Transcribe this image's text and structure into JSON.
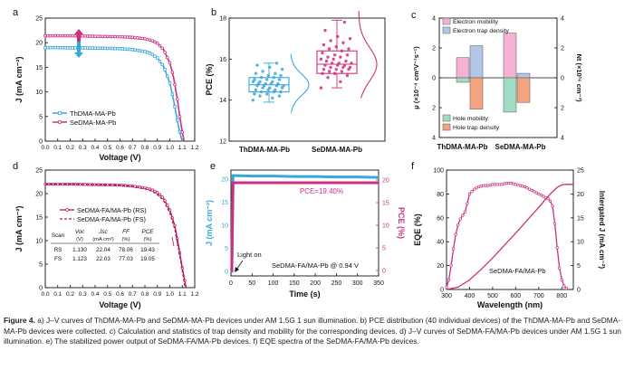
{
  "panels": {
    "a": {
      "letter": "a",
      "xlabel": "Voltage (V)",
      "ylabel": "J (mA cm⁻²)",
      "xlim": [
        0,
        1.2
      ],
      "ylim": [
        0,
        25
      ],
      "xticks": [
        "0.0",
        "0.1",
        "0.2",
        "0.3",
        "0.4",
        "0.5",
        "0.6",
        "0.7",
        "0.8",
        "0.9",
        "1.0",
        "1.1",
        "1.2"
      ],
      "yticks": [
        "0",
        "5",
        "10",
        "15",
        "20",
        "25"
      ],
      "legend": [
        "ThDMA-MA-Pb",
        "SeDMA-MA-Pb"
      ]
    },
    "b": {
      "letter": "b",
      "ylabel": "PCE (%)",
      "ylim": [
        12,
        18
      ],
      "yticks": [
        "12",
        "14",
        "16",
        "18"
      ],
      "categories": [
        "ThDMA-MA-Pb",
        "SeDMA-MA-Pb"
      ]
    },
    "c": {
      "letter": "c",
      "ylabel_left": "μ (×10⁻⁴ cm²V⁻¹s⁻¹)",
      "ylabel_right": "Nt (×10¹⁶ cm⁻³)",
      "yticks": [
        "4",
        "2",
        "0",
        "2",
        "4"
      ],
      "categories": [
        "ThDMA-MA-Pb",
        "SeDMA-MA-Pb"
      ],
      "legend_top": [
        "Electron mobility",
        "Electron trap density"
      ],
      "legend_bottom": [
        "Hole mobility",
        "Hole trap density"
      ]
    },
    "d": {
      "letter": "d",
      "xlabel": "Voltage (V)",
      "ylabel": "J (mA cm⁻²)",
      "xlim": [
        0,
        1.2
      ],
      "ylim": [
        0,
        25
      ],
      "xticks": [
        "0.0",
        "0.1",
        "0.2",
        "0.3",
        "0.4",
        "0.5",
        "0.6",
        "0.7",
        "0.8",
        "0.9",
        "1.0",
        "1.1",
        "1.2"
      ],
      "yticks": [
        "0",
        "5",
        "10",
        "15",
        "20",
        "25"
      ],
      "legend": [
        "SeDMA-FA/MA-Pb (RS)",
        "SeDMA-FA/MA-Pb (FS)"
      ],
      "table": {
        "header": [
          "Scan",
          "Voc",
          "Jsc",
          "FF",
          "PCE"
        ],
        "units": [
          "",
          "(V)",
          "(mA cm²)",
          "(%)",
          "(%)"
        ],
        "rows": [
          [
            "RS",
            "1.130",
            "22.04",
            "78.06",
            "19.43"
          ],
          [
            "FS",
            "1.123",
            "22.03",
            "77.03",
            "19.05"
          ]
        ]
      }
    },
    "e": {
      "letter": "e",
      "xlabel": "Time (s)",
      "ylabel_left": "J (mA cm⁻²)",
      "ylabel_right": "PCE (%)",
      "xticks": [
        "0",
        "50",
        "100",
        "150",
        "200",
        "250",
        "300",
        "350"
      ],
      "yticks_left": [
        "0",
        "5",
        "10",
        "15",
        "20"
      ],
      "yticks_right": [
        "0",
        "5",
        "10",
        "15",
        "20"
      ],
      "pce_label": "PCE=19.40%",
      "light_label": "Light on",
      "device_label": "SeDMA-FA/MA-Pb  @ 0.94 V"
    },
    "f": {
      "letter": "f",
      "xlabel": "Wavelength (nm)",
      "ylabel_left": "EQE (%)",
      "ylabel_right": "Intergated J (mA cm⁻²)",
      "xticks": [
        "300",
        "400",
        "500",
        "600",
        "700",
        "800"
      ],
      "yticks_left": [
        "0",
        "20",
        "40",
        "60",
        "80",
        "100"
      ],
      "yticks_right": [
        "0",
        "5",
        "10",
        "15",
        "20",
        "25"
      ],
      "device_label": "SeDMA-FA/MA-Pb"
    }
  },
  "colors": {
    "th": "#3aa7dc",
    "se": "#cc2f7d",
    "se_dark": "#b2195f",
    "electron_mobility": "#f3b2d4",
    "electron_trap": "#b3c6ea",
    "hole_mobility": "#a3dcc4",
    "hole_trap": "#f3a37f"
  },
  "chart_data": [
    {
      "type": "line",
      "title": "a",
      "xlabel": "Voltage (V)",
      "ylabel": "J (mA cm-2)",
      "xlim": [
        0,
        1.2
      ],
      "ylim": [
        0,
        25
      ],
      "series": [
        {
          "name": "ThDMA-MA-Pb",
          "x": [
            0,
            0.1,
            0.2,
            0.3,
            0.4,
            0.5,
            0.6,
            0.7,
            0.8,
            0.85,
            0.9,
            0.95,
            1.0,
            1.03,
            1.05,
            1.07,
            1.09,
            1.1
          ],
          "y": [
            19.0,
            19.0,
            18.95,
            18.95,
            18.9,
            18.85,
            18.8,
            18.6,
            18.2,
            17.8,
            16.9,
            15.2,
            11.8,
            8.4,
            5.6,
            3.0,
            0.8,
            0
          ]
        },
        {
          "name": "SeDMA-MA-Pb",
          "x": [
            0,
            0.1,
            0.2,
            0.3,
            0.4,
            0.5,
            0.6,
            0.7,
            0.8,
            0.85,
            0.9,
            0.95,
            1.0,
            1.03,
            1.06,
            1.08,
            1.1,
            1.115
          ],
          "y": [
            21.4,
            21.4,
            21.4,
            21.35,
            21.3,
            21.25,
            21.2,
            21.1,
            20.8,
            20.5,
            19.9,
            18.6,
            15.9,
            13.0,
            8.5,
            5.0,
            1.8,
            0
          ]
        }
      ]
    },
    {
      "type": "scatter",
      "title": "b",
      "ylabel": "PCE (%)",
      "categories": [
        "ThDMA-MA-Pb",
        "SeDMA-MA-Pb"
      ],
      "ylim": [
        12,
        18
      ],
      "box": [
        {
          "name": "ThDMA-MA-Pb",
          "q1": 14.4,
          "median": 14.75,
          "q3": 15.1,
          "min": 13.9,
          "max": 15.8
        },
        {
          "name": "SeDMA-MA-Pb",
          "q1": 15.3,
          "median": 15.75,
          "q3": 16.4,
          "min": 14.6,
          "max": 17.9
        }
      ],
      "points": [
        {
          "name": "ThDMA-MA-Pb",
          "values": [
            14.0,
            14.1,
            14.2,
            14.2,
            14.3,
            14.3,
            14.4,
            14.4,
            14.4,
            14.5,
            14.5,
            14.5,
            14.6,
            14.6,
            14.6,
            14.7,
            14.7,
            14.7,
            14.7,
            14.8,
            14.8,
            14.8,
            14.8,
            14.9,
            14.9,
            14.9,
            15.0,
            15.0,
            15.0,
            15.1,
            15.1,
            15.2,
            15.2,
            15.3,
            15.3,
            15.4,
            15.5,
            15.6,
            15.7,
            15.8
          ]
        },
        {
          "name": "SeDMA-MA-Pb",
          "values": [
            14.6,
            14.9,
            15.1,
            15.2,
            15.3,
            15.3,
            15.4,
            15.4,
            15.5,
            15.5,
            15.5,
            15.6,
            15.6,
            15.6,
            15.7,
            15.7,
            15.7,
            15.8,
            15.8,
            15.8,
            15.9,
            15.9,
            16.0,
            16.0,
            16.1,
            16.1,
            16.2,
            16.2,
            16.3,
            16.4,
            16.5,
            16.5,
            16.6,
            16.7,
            16.8,
            16.9,
            17.0,
            17.1,
            17.4,
            17.8
          ]
        }
      ]
    },
    {
      "type": "bar",
      "title": "c",
      "categories": [
        "ThDMA-MA-Pb",
        "SeDMA-MA-Pb"
      ],
      "ylim": [
        -4,
        4
      ],
      "series": [
        {
          "name": "Electron mobility",
          "values": [
            1.35,
            3.0
          ]
        },
        {
          "name": "Electron trap density",
          "values": [
            2.15,
            0.3
          ]
        },
        {
          "name": "Hole mobility",
          "values": [
            -0.3,
            -2.3
          ]
        },
        {
          "name": "Hole trap density",
          "values": [
            -2.1,
            -1.65
          ]
        }
      ]
    },
    {
      "type": "line",
      "title": "d",
      "xlabel": "Voltage (V)",
      "ylabel": "J (mA cm-2)",
      "xlim": [
        0,
        1.2
      ],
      "ylim": [
        0,
        25
      ],
      "series": [
        {
          "name": "SeDMA-FA/MA-Pb (RS)",
          "x": [
            0,
            0.1,
            0.2,
            0.3,
            0.4,
            0.5,
            0.6,
            0.7,
            0.8,
            0.85,
            0.9,
            0.95,
            1.0,
            1.04,
            1.07,
            1.1,
            1.12,
            1.13
          ],
          "y": [
            22.0,
            22.0,
            22.0,
            21.95,
            21.9,
            21.85,
            21.8,
            21.6,
            21.2,
            20.9,
            20.2,
            19.0,
            16.5,
            13.2,
            9.0,
            4.2,
            1.5,
            0
          ]
        },
        {
          "name": "SeDMA-FA/MA-Pb (FS)",
          "x": [
            0,
            0.1,
            0.2,
            0.3,
            0.4,
            0.5,
            0.6,
            0.7,
            0.8,
            0.85,
            0.9,
            0.95,
            1.0,
            1.04,
            1.07,
            1.1,
            1.115,
            1.123
          ],
          "y": [
            22.0,
            22.0,
            22.0,
            21.95,
            21.9,
            21.85,
            21.75,
            21.5,
            21.0,
            20.6,
            19.8,
            18.5,
            15.9,
            12.5,
            8.4,
            3.6,
            1.3,
            0
          ]
        }
      ]
    },
    {
      "type": "line",
      "title": "e",
      "xlabel": "Time (s)",
      "xlim": [
        0,
        350
      ],
      "series": [
        {
          "name": "J (mA cm-2)",
          "x": [
            0,
            2,
            5,
            10,
            50,
            100,
            150,
            200,
            250,
            300,
            350
          ],
          "y": [
            0,
            0,
            20.8,
            20.8,
            20.7,
            20.7,
            20.6,
            20.6,
            20.5,
            20.5,
            20.4
          ]
        },
        {
          "name": "PCE (%)",
          "x": [
            0,
            2,
            5,
            10,
            50,
            100,
            150,
            200,
            250,
            300,
            350
          ],
          "y": [
            0,
            0,
            19.4,
            19.4,
            19.4,
            19.4,
            19.4,
            19.4,
            19.4,
            19.4,
            19.4
          ]
        }
      ]
    },
    {
      "type": "line",
      "title": "f",
      "xlabel": "Wavelength (nm)",
      "xlim": [
        300,
        850
      ],
      "series": [
        {
          "name": "EQE (%)",
          "x": [
            300,
            310,
            320,
            330,
            340,
            350,
            360,
            370,
            380,
            390,
            400,
            420,
            440,
            460,
            480,
            500,
            520,
            540,
            560,
            580,
            600,
            620,
            640,
            660,
            680,
            700,
            720,
            740,
            750,
            760,
            770,
            780,
            790,
            800,
            810,
            820
          ],
          "y": [
            2,
            8,
            20,
            34,
            46,
            54,
            59,
            62,
            65,
            72,
            80,
            84,
            86,
            87,
            87,
            88,
            88,
            88,
            89,
            89,
            88,
            87,
            86,
            84,
            82,
            80,
            78,
            76,
            74,
            70,
            55,
            35,
            18,
            8,
            3,
            1
          ]
        },
        {
          "name": "Integrated J (mA cm-2)",
          "x": [
            300,
            350,
            400,
            450,
            500,
            550,
            600,
            650,
            700,
            750,
            780,
            800,
            820,
            850
          ],
          "y": [
            0,
            0.5,
            2.0,
            4.2,
            6.6,
            9.2,
            11.8,
            14.5,
            17.2,
            20.0,
            21.4,
            21.9,
            22.0,
            22.0
          ]
        }
      ]
    }
  ],
  "caption": {
    "label": "Figure 4.",
    "text": "a) J–V curves of ThDMA-MA-Pb and SeDMA-MA-Pb devices under AM 1.5G 1 sun illumination. b) PCE distribution (40 individual devices) of the ThDMA-MA-Pb and SeDMA-MA-Pb devices were collected. c) Calculation and statistics of trap density and mobility for the corresponding devices. d) J–V curves of SeDMA-FA/MA-Pb devices under AM 1.5G 1 sun illumination. e) The stabilized power output of SeDMA-FA/MA-Pb devices. f) EQE spectra of the SeDMA-FA/MA-Pb devices."
  }
}
